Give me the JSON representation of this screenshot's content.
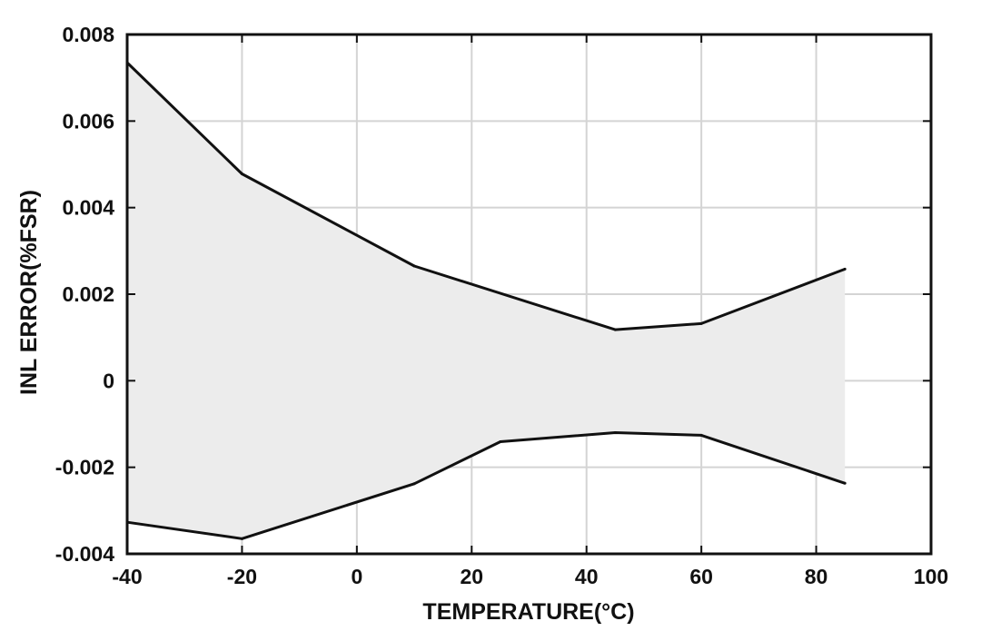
{
  "chart_data": {
    "type": "area",
    "title": "",
    "xlabel": "TEMPERATURE(°C)",
    "ylabel": "INL ERROR(%FSR)",
    "xlim": [
      -40,
      100
    ],
    "ylim": [
      -0.004,
      0.008
    ],
    "grid": true,
    "x_ticks": [
      -40,
      -20,
      0,
      20,
      40,
      60,
      80,
      100
    ],
    "x_tick_labels": [
      "-40",
      "-20",
      "0",
      "20",
      "40",
      "60",
      "80",
      "100"
    ],
    "y_ticks": [
      -0.004,
      -0.002,
      0,
      0.002,
      0.004,
      0.006,
      0.008
    ],
    "y_tick_labels": [
      "-0.004",
      "-0.002",
      "0",
      "0.002",
      "0.004",
      "0.006",
      "0.008"
    ],
    "fill_color": "#ececec",
    "line_color": "#111111",
    "grid_color": "#d4d4d4",
    "series": [
      {
        "x": [
          -40,
          -20,
          10,
          45,
          60,
          85
        ],
        "values": [
          0.00735,
          0.00478,
          0.00265,
          0.00118,
          0.00132,
          0.00258
        ]
      },
      {
        "x": [
          -40,
          -20,
          10,
          25,
          45,
          60,
          85
        ],
        "values": [
          -0.00327,
          -0.00365,
          -0.00238,
          -0.00141,
          -0.0012,
          -0.00126,
          -0.00237
        ]
      }
    ]
  }
}
